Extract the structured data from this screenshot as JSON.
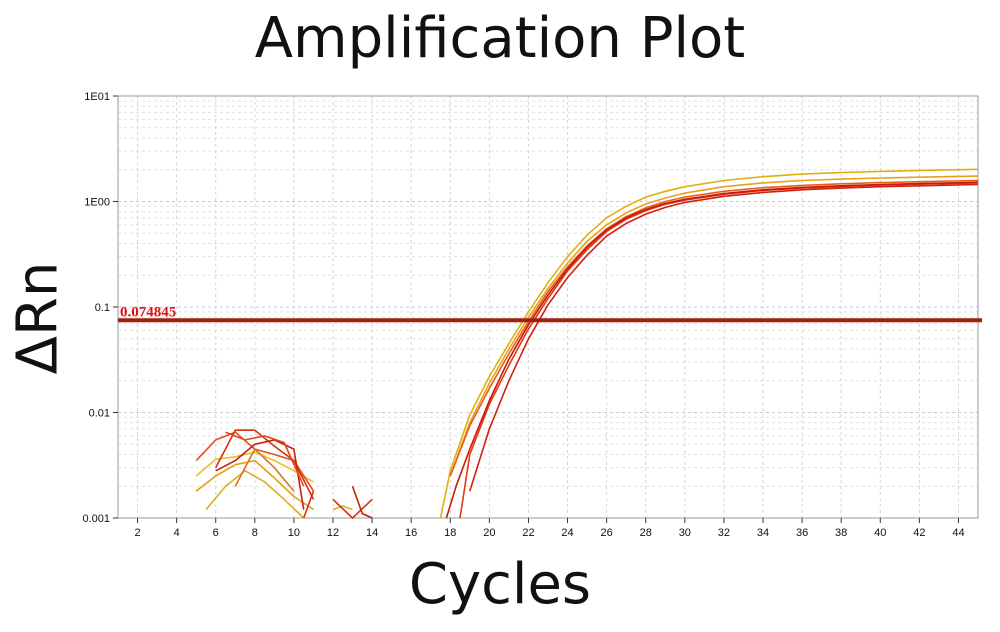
{
  "chart_data": {
    "type": "line",
    "title": "Amplification Plot",
    "xlabel": "Cycles",
    "ylabel": "ΔRn",
    "y_scale": "log",
    "xlim": [
      1,
      45
    ],
    "ylim": [
      0.001,
      10
    ],
    "x_ticks": [
      "2",
      "4",
      "6",
      "8",
      "10",
      "12",
      "14",
      "16",
      "18",
      "20",
      "22",
      "24",
      "26",
      "28",
      "30",
      "32",
      "34",
      "36",
      "38",
      "40",
      "42",
      "44"
    ],
    "y_ticks": [
      "0.001",
      "0.01",
      "0.1",
      "1E00",
      "1E01"
    ],
    "grid": true,
    "threshold": {
      "value": 0.074845,
      "label": "0.074845",
      "color": "#a0200d"
    },
    "series": [
      {
        "color": "#e0b010",
        "x": [
          17.5,
          18,
          19,
          20,
          21,
          22,
          23,
          24,
          25,
          26,
          27,
          28,
          29,
          30,
          32,
          34,
          36,
          38,
          40,
          42,
          45
        ],
        "y": [
          0.001,
          0.0028,
          0.0095,
          0.022,
          0.045,
          0.09,
          0.17,
          0.3,
          0.48,
          0.7,
          0.9,
          1.1,
          1.25,
          1.38,
          1.58,
          1.72,
          1.82,
          1.88,
          1.93,
          1.97,
          2.02
        ]
      },
      {
        "color": "#e8a020",
        "x": [
          18,
          19,
          20,
          21,
          22,
          23,
          24,
          25,
          26,
          27,
          28,
          29,
          30,
          32,
          34,
          36,
          38,
          40,
          42,
          45
        ],
        "y": [
          0.0025,
          0.008,
          0.019,
          0.04,
          0.08,
          0.15,
          0.26,
          0.42,
          0.6,
          0.78,
          0.95,
          1.08,
          1.2,
          1.38,
          1.5,
          1.58,
          1.63,
          1.67,
          1.7,
          1.74
        ]
      },
      {
        "color": "#e86018",
        "x": [
          18,
          19,
          20,
          21,
          22,
          23,
          24,
          25,
          26,
          27,
          28,
          29,
          30,
          32,
          34,
          36,
          38,
          40,
          42,
          45
        ],
        "y": [
          0.0025,
          0.0075,
          0.017,
          0.036,
          0.073,
          0.14,
          0.24,
          0.38,
          0.55,
          0.72,
          0.87,
          1.0,
          1.1,
          1.25,
          1.35,
          1.42,
          1.47,
          1.51,
          1.54,
          1.58
        ]
      },
      {
        "color": "#e03818",
        "x": [
          18.5,
          19,
          20,
          21,
          22,
          23,
          24,
          25,
          26,
          27,
          28,
          29,
          30,
          32,
          34,
          36,
          38,
          40,
          42,
          45
        ],
        "y": [
          0.001,
          0.004,
          0.012,
          0.028,
          0.062,
          0.12,
          0.22,
          0.35,
          0.52,
          0.68,
          0.82,
          0.94,
          1.03,
          1.17,
          1.27,
          1.34,
          1.39,
          1.43,
          1.46,
          1.5
        ]
      },
      {
        "color": "#d02010",
        "x": [
          19,
          20,
          21,
          22,
          23,
          24,
          25,
          26,
          27,
          28,
          29,
          30,
          32,
          34,
          36,
          38,
          40,
          42,
          45
        ],
        "y": [
          0.0018,
          0.007,
          0.02,
          0.05,
          0.105,
          0.19,
          0.31,
          0.47,
          0.62,
          0.76,
          0.88,
          0.98,
          1.12,
          1.22,
          1.29,
          1.34,
          1.38,
          1.41,
          1.45
        ]
      },
      {
        "color": "#c81808",
        "x": [
          17.8,
          18.3,
          19,
          20,
          21,
          22,
          23,
          24,
          25,
          26,
          27,
          28,
          29,
          30,
          32,
          34,
          36,
          38,
          40,
          42,
          45
        ],
        "y": [
          0.001,
          0.002,
          0.0045,
          0.013,
          0.032,
          0.068,
          0.13,
          0.23,
          0.37,
          0.54,
          0.7,
          0.84,
          0.96,
          1.05,
          1.19,
          1.29,
          1.36,
          1.41,
          1.45,
          1.48,
          1.52
        ]
      },
      {
        "color": "#e8c020",
        "x": [
          5,
          6,
          7,
          8,
          9,
          10,
          11
        ],
        "y": [
          0.0025,
          0.0036,
          0.0038,
          0.0042,
          0.0035,
          0.0028,
          0.0022
        ]
      },
      {
        "color": "#e0a010",
        "x": [
          5,
          6,
          7,
          8,
          9,
          10,
          11
        ],
        "y": [
          0.0018,
          0.0025,
          0.0032,
          0.0035,
          0.0024,
          0.0016,
          0.0012
        ]
      },
      {
        "color": "#d8b020",
        "x": [
          5.5,
          6.5,
          7.5,
          8.5,
          9.5,
          10.5
        ],
        "y": [
          0.0012,
          0.002,
          0.0028,
          0.0022,
          0.0015,
          0.001
        ]
      },
      {
        "color": "#e05018",
        "x": [
          5,
          6,
          7,
          8,
          9,
          10,
          11
        ],
        "y": [
          0.0035,
          0.0055,
          0.0065,
          0.0045,
          0.004,
          0.0035,
          0.0018
        ]
      },
      {
        "color": "#d83010",
        "x": [
          6,
          7,
          8,
          9,
          10,
          11
        ],
        "y": [
          0.003,
          0.0068,
          0.0068,
          0.0048,
          0.0035,
          0.0015
        ]
      },
      {
        "color": "#c82010",
        "x": [
          6,
          7,
          8,
          9,
          10,
          10.5
        ],
        "y": [
          0.0028,
          0.0035,
          0.005,
          0.0055,
          0.0045,
          0.0012
        ]
      },
      {
        "color": "#e04818",
        "x": [
          6.5,
          7.5,
          8.5,
          9.5,
          10.5
        ],
        "y": [
          0.0065,
          0.0055,
          0.006,
          0.0052,
          0.002
        ]
      },
      {
        "color": "#e07020",
        "x": [
          7,
          8,
          9,
          10
        ],
        "y": [
          0.002,
          0.0045,
          0.003,
          0.0018
        ]
      },
      {
        "color": "#d83010",
        "x": [
          10.5,
          11
        ],
        "y": [
          0.001,
          0.0018
        ]
      },
      {
        "color": "#e0b020",
        "x": [
          12,
          12.5,
          13
        ],
        "y": [
          0.0012,
          0.0013,
          0.0012
        ]
      },
      {
        "color": "#d83010",
        "x": [
          12,
          13,
          14
        ],
        "y": [
          0.0015,
          0.001,
          0.0015
        ]
      },
      {
        "color": "#c82010",
        "x": [
          13,
          13.5,
          14
        ],
        "y": [
          0.002,
          0.0011,
          0.001
        ]
      }
    ]
  }
}
